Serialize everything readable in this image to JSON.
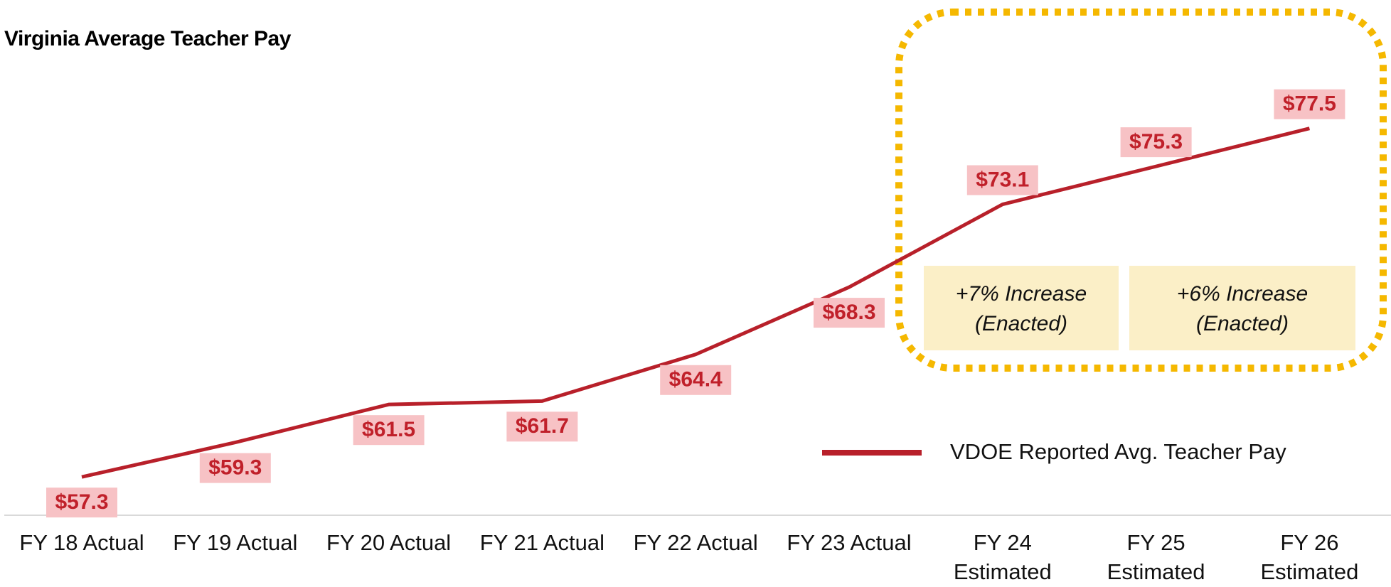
{
  "chart_data": {
    "type": "line",
    "title": "Virginia Average Teacher Pay",
    "categories": [
      "FY 18 Actual",
      "FY 19 Actual",
      "FY 20 Actual",
      "FY 21 Actual",
      "FY 22 Actual",
      "FY 23 Actual",
      "FY 24\nEstimated",
      "FY 25\nEstimated",
      "FY 26\nEstimated"
    ],
    "series": [
      {
        "name": "VDOE Reported Avg. Teacher Pay",
        "color": "#b8202a",
        "values": [
          57.3,
          59.3,
          61.5,
          61.7,
          64.4,
          68.3,
          73.1,
          75.3,
          77.5
        ],
        "value_labels": [
          "$57.3",
          "$59.3",
          "$61.5",
          "$61.7",
          "$64.4",
          "$68.3",
          "$73.1",
          "$75.3",
          "$77.5"
        ]
      }
    ],
    "ylim": [
      55,
      80
    ],
    "annotations": [
      "+7% Increase\n(Enacted)",
      "+6% Increase\n(Enacted)"
    ],
    "legend": "bottom-right"
  }
}
